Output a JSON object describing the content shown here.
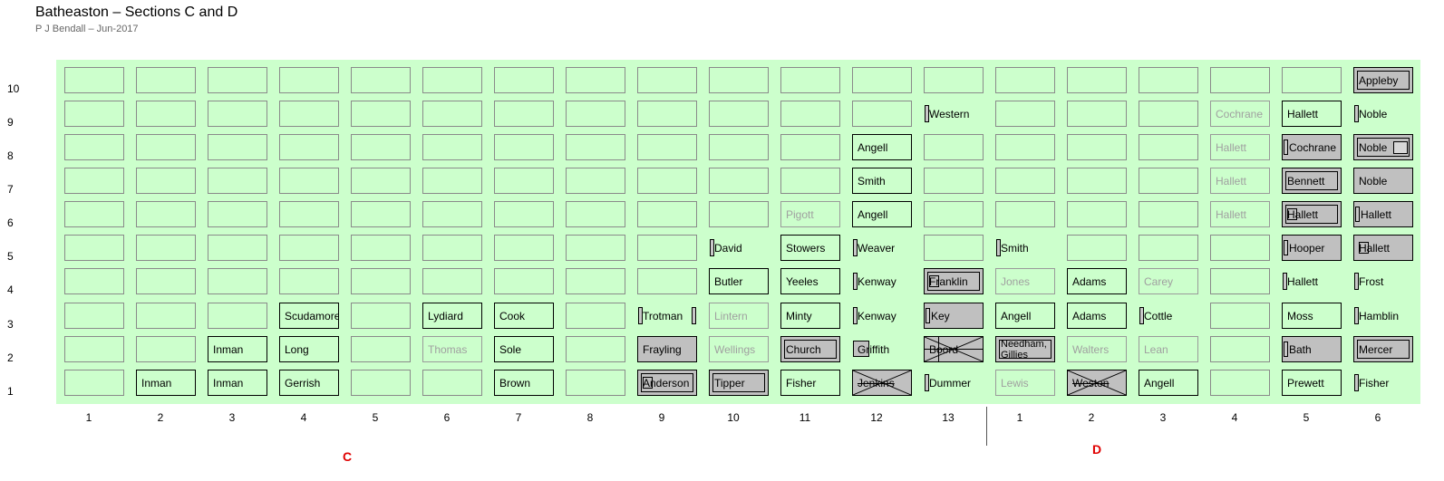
{
  "title": "Batheaston – Sections C and D",
  "subtitle": "P J Bendall – Jun-2017",
  "sections": [
    "C",
    "D"
  ],
  "columns_C": [
    1,
    2,
    3,
    4,
    5,
    6,
    7,
    8,
    9,
    10,
    11,
    12,
    13
  ],
  "columns_D": [
    1,
    2,
    3,
    4,
    5,
    6
  ],
  "rows": [
    10,
    9,
    8,
    7,
    6,
    5,
    4,
    3,
    2,
    1
  ],
  "colors": {
    "panel": "#ccffcc",
    "grey_plot": "#c0c0c0",
    "section_label": "#e00000"
  },
  "plots": [
    {
      "sec": "C",
      "col": 2,
      "row": 1,
      "label": "Inman",
      "style": "normal"
    },
    {
      "sec": "C",
      "col": 3,
      "row": 1,
      "label": "Inman",
      "style": "normal"
    },
    {
      "sec": "C",
      "col": 3,
      "row": 2,
      "label": "Inman",
      "style": "normal"
    },
    {
      "sec": "C",
      "col": 4,
      "row": 1,
      "label": "Gerrish",
      "style": "normal"
    },
    {
      "sec": "C",
      "col": 4,
      "row": 2,
      "label": "Long",
      "style": "normal"
    },
    {
      "sec": "C",
      "col": 4,
      "row": 3,
      "label": "Scudamore",
      "style": "normal"
    },
    {
      "sec": "C",
      "col": 6,
      "row": 2,
      "label": "Thomas",
      "style": "faint"
    },
    {
      "sec": "C",
      "col": 6,
      "row": 3,
      "label": "Lydiard",
      "style": "normal"
    },
    {
      "sec": "C",
      "col": 7,
      "row": 1,
      "label": "Brown",
      "style": "normal"
    },
    {
      "sec": "C",
      "col": 7,
      "row": 2,
      "label": "Sole",
      "style": "normal"
    },
    {
      "sec": "C",
      "col": 7,
      "row": 3,
      "label": "Cook",
      "style": "normal"
    },
    {
      "sec": "C",
      "col": 9,
      "row": 1,
      "label": "Anderson",
      "style": "grey",
      "inner": true,
      "tiny": true
    },
    {
      "sec": "C",
      "col": 9,
      "row": 2,
      "label": "Frayling",
      "style": "grey"
    },
    {
      "sec": "C",
      "col": 9,
      "row": 3,
      "label": "Trotman",
      "style": "nobord",
      "marker": "both"
    },
    {
      "sec": "C",
      "col": 10,
      "row": 1,
      "label": "Tipper",
      "style": "grey",
      "inner": true
    },
    {
      "sec": "C",
      "col": 10,
      "row": 2,
      "label": "Wellings",
      "style": "faint"
    },
    {
      "sec": "C",
      "col": 10,
      "row": 3,
      "label": "Lintern",
      "style": "faint"
    },
    {
      "sec": "C",
      "col": 10,
      "row": 4,
      "label": "Butler",
      "style": "normal"
    },
    {
      "sec": "C",
      "col": 10,
      "row": 5,
      "label": "David",
      "style": "nobord",
      "marker": "left"
    },
    {
      "sec": "C",
      "col": 11,
      "row": 1,
      "label": "Fisher",
      "style": "normal"
    },
    {
      "sec": "C",
      "col": 11,
      "row": 2,
      "label": "Church",
      "style": "grey",
      "inner": true
    },
    {
      "sec": "C",
      "col": 11,
      "row": 3,
      "label": "Minty",
      "style": "normal"
    },
    {
      "sec": "C",
      "col": 11,
      "row": 4,
      "label": "Yeeles",
      "style": "normal"
    },
    {
      "sec": "C",
      "col": 11,
      "row": 5,
      "label": "Stowers",
      "style": "normal"
    },
    {
      "sec": "C",
      "col": 11,
      "row": 6,
      "label": "Pigott",
      "style": "faintnb"
    },
    {
      "sec": "C",
      "col": 12,
      "row": 1,
      "label": "Jenkins",
      "style": "grey",
      "cross": true,
      "strike": true
    },
    {
      "sec": "C",
      "col": 12,
      "row": 2,
      "label": "Griffith",
      "style": "nobord",
      "tinybox": true
    },
    {
      "sec": "C",
      "col": 12,
      "row": 3,
      "label": "Kenway",
      "style": "nobord",
      "marker": "left"
    },
    {
      "sec": "C",
      "col": 12,
      "row": 4,
      "label": "Kenway",
      "style": "nobord",
      "marker": "left"
    },
    {
      "sec": "C",
      "col": 12,
      "row": 5,
      "label": "Weaver",
      "style": "nobord",
      "marker": "left"
    },
    {
      "sec": "C",
      "col": 12,
      "row": 6,
      "label": "Angell",
      "style": "normal"
    },
    {
      "sec": "C",
      "col": 12,
      "row": 7,
      "label": "Smith",
      "style": "normal"
    },
    {
      "sec": "C",
      "col": 12,
      "row": 8,
      "label": "Angell",
      "style": "normal"
    },
    {
      "sec": "C",
      "col": 13,
      "row": 1,
      "label": "Dummer",
      "style": "nobord",
      "marker": "left"
    },
    {
      "sec": "C",
      "col": 13,
      "row": 2,
      "label": "Boord",
      "style": "grey",
      "star": true
    },
    {
      "sec": "C",
      "col": 13,
      "row": 3,
      "label": "Key",
      "style": "grey",
      "marker": "left"
    },
    {
      "sec": "C",
      "col": 13,
      "row": 4,
      "label": "Franklin",
      "style": "grey",
      "inner": true,
      "tiny": true
    },
    {
      "sec": "C",
      "col": 13,
      "row": 9,
      "label": "Western",
      "style": "nobord",
      "marker": "left"
    },
    {
      "sec": "D",
      "col": 1,
      "row": 1,
      "label": "Lewis",
      "style": "faint"
    },
    {
      "sec": "D",
      "col": 1,
      "row": 2,
      "label": "Needham, Gillies",
      "style": "grey",
      "inner": true,
      "two": true
    },
    {
      "sec": "D",
      "col": 1,
      "row": 3,
      "label": "Angell",
      "style": "normal"
    },
    {
      "sec": "D",
      "col": 1,
      "row": 4,
      "label": "Jones",
      "style": "faint"
    },
    {
      "sec": "D",
      "col": 1,
      "row": 5,
      "label": "Smith",
      "style": "nobord",
      "marker": "left"
    },
    {
      "sec": "D",
      "col": 2,
      "row": 1,
      "label": "Weston",
      "style": "grey",
      "cross": true,
      "strike": true
    },
    {
      "sec": "D",
      "col": 2,
      "row": 2,
      "label": "Walters",
      "style": "faint"
    },
    {
      "sec": "D",
      "col": 2,
      "row": 3,
      "label": "Adams",
      "style": "normal"
    },
    {
      "sec": "D",
      "col": 2,
      "row": 4,
      "label": "Adams",
      "style": "normal"
    },
    {
      "sec": "D",
      "col": 3,
      "row": 1,
      "label": "Angell",
      "style": "normal"
    },
    {
      "sec": "D",
      "col": 3,
      "row": 2,
      "label": "Lean",
      "style": "faint"
    },
    {
      "sec": "D",
      "col": 3,
      "row": 3,
      "label": "Cottle",
      "style": "nobord",
      "marker": "left"
    },
    {
      "sec": "D",
      "col": 3,
      "row": 4,
      "label": "Carey",
      "style": "faint"
    },
    {
      "sec": "D",
      "col": 4,
      "row": 6,
      "label": "Hallett",
      "style": "faint"
    },
    {
      "sec": "D",
      "col": 4,
      "row": 7,
      "label": "Hallett",
      "style": "faint"
    },
    {
      "sec": "D",
      "col": 4,
      "row": 8,
      "label": "Hallett",
      "style": "faint"
    },
    {
      "sec": "D",
      "col": 4,
      "row": 9,
      "label": "Cochrane",
      "style": "faint"
    },
    {
      "sec": "D",
      "col": 5,
      "row": 1,
      "label": "Prewett",
      "style": "normal"
    },
    {
      "sec": "D",
      "col": 5,
      "row": 2,
      "label": "Bath",
      "style": "grey",
      "marker": "left"
    },
    {
      "sec": "D",
      "col": 5,
      "row": 3,
      "label": "Moss",
      "style": "normal"
    },
    {
      "sec": "D",
      "col": 5,
      "row": 4,
      "label": "Hallett",
      "style": "nobord",
      "marker": "left"
    },
    {
      "sec": "D",
      "col": 5,
      "row": 5,
      "label": "Hooper",
      "style": "grey",
      "marker": "left"
    },
    {
      "sec": "D",
      "col": 5,
      "row": 6,
      "label": "Hallett",
      "style": "grey",
      "inner": true,
      "tiny": true
    },
    {
      "sec": "D",
      "col": 5,
      "row": 7,
      "label": "Bennett",
      "style": "grey",
      "inner": true
    },
    {
      "sec": "D",
      "col": 5,
      "row": 8,
      "label": "Cochrane",
      "style": "grey",
      "marker": "left"
    },
    {
      "sec": "D",
      "col": 5,
      "row": 9,
      "label": "Hallett",
      "style": "normal"
    },
    {
      "sec": "D",
      "col": 6,
      "row": 1,
      "label": "Fisher",
      "style": "nobord",
      "marker": "left"
    },
    {
      "sec": "D",
      "col": 6,
      "row": 2,
      "label": "Mercer",
      "style": "grey",
      "inner": true
    },
    {
      "sec": "D",
      "col": 6,
      "row": 3,
      "label": "Hamblin",
      "style": "nobord",
      "marker": "left"
    },
    {
      "sec": "D",
      "col": 6,
      "row": 4,
      "label": "Frost",
      "style": "nobord",
      "marker": "left"
    },
    {
      "sec": "D",
      "col": 6,
      "row": 5,
      "label": "Hallett",
      "style": "grey",
      "tiny": true
    },
    {
      "sec": "D",
      "col": 6,
      "row": 6,
      "label": "Hallett",
      "style": "grey",
      "marker": "left"
    },
    {
      "sec": "D",
      "col": 6,
      "row": 7,
      "label": "Noble",
      "style": "grey"
    },
    {
      "sec": "D",
      "col": 6,
      "row": 8,
      "label": "Noble",
      "style": "grey",
      "inner": true,
      "tinyright": true
    },
    {
      "sec": "D",
      "col": 6,
      "row": 9,
      "label": "Noble",
      "style": "nobord",
      "marker": "left"
    },
    {
      "sec": "D",
      "col": 6,
      "row": 10,
      "label": "Appleby",
      "style": "grey",
      "inner": true
    }
  ],
  "empty_D": [
    [
      1,
      6
    ],
    [
      1,
      7
    ],
    [
      1,
      8
    ],
    [
      1,
      9
    ],
    [
      1,
      10
    ],
    [
      2,
      5
    ],
    [
      2,
      6
    ],
    [
      2,
      7
    ],
    [
      2,
      8
    ],
    [
      2,
      9
    ],
    [
      2,
      10
    ],
    [
      3,
      5
    ],
    [
      3,
      6
    ],
    [
      3,
      7
    ],
    [
      3,
      8
    ],
    [
      3,
      9
    ],
    [
      3,
      10
    ],
    [
      4,
      1
    ],
    [
      4,
      2
    ],
    [
      4,
      3
    ],
    [
      4,
      4
    ],
    [
      4,
      5
    ],
    [
      4,
      10
    ],
    [
      5,
      10
    ]
  ],
  "empty_C_top": {
    "1": 10,
    "2": 10,
    "3": 10,
    "4": 10,
    "5": 10,
    "6": 10,
    "7": 10,
    "8": 10,
    "9": 10,
    "10": 10,
    "11": 10,
    "12": 10,
    "13": 10
  }
}
